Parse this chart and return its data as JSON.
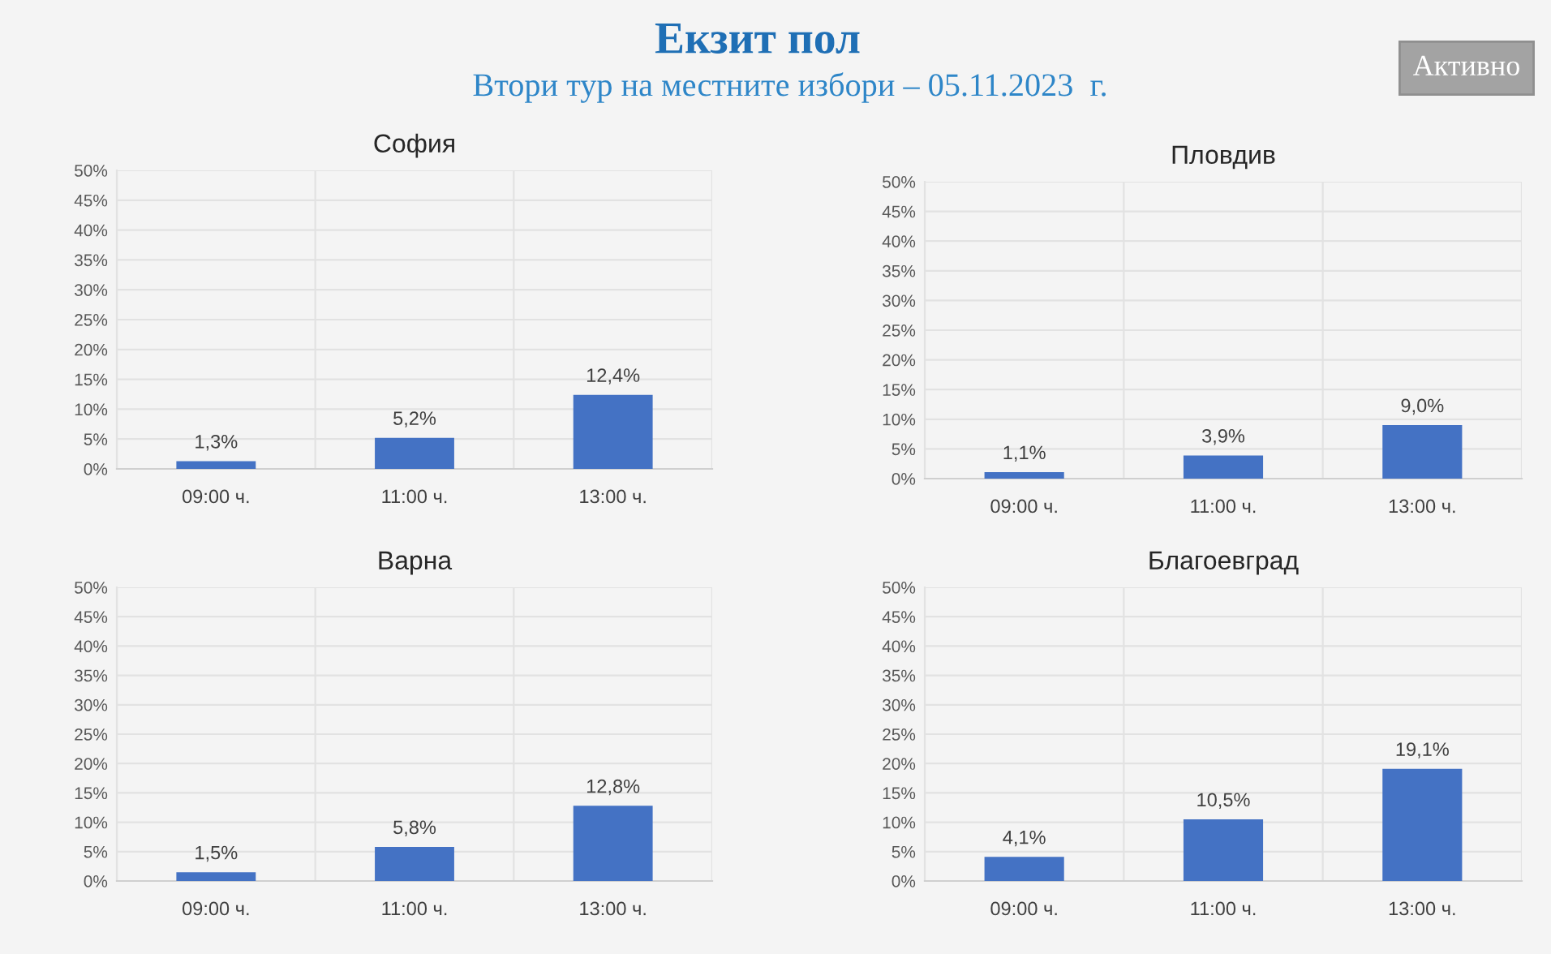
{
  "chart_data": [
    {
      "type": "other",
      "title": "Екзит пол",
      "subtitle": "Втори тур на местните избори – 05.11.2023  г.",
      "annotations": [
        "Активно"
      ]
    },
    {
      "type": "bar",
      "title": "София",
      "categories": [
        "09:00 ч.",
        "11:00 ч.",
        "13:00 ч."
      ],
      "values": [
        1.3,
        5.2,
        12.4
      ],
      "value_labels": [
        "1,3%",
        "5,2%",
        "12,4%"
      ],
      "color": "#4472c4",
      "ylim": [
        0,
        50
      ],
      "yticks": [
        {
          "value": 0,
          "label": "0%"
        },
        {
          "value": 5,
          "label": "5%"
        },
        {
          "value": 10,
          "label": "10%"
        },
        {
          "value": 15,
          "label": "15%"
        },
        {
          "value": 20,
          "label": "20%"
        },
        {
          "value": 25,
          "label": "25%"
        },
        {
          "value": 30,
          "label": "30%"
        },
        {
          "value": 35,
          "label": "35%"
        },
        {
          "value": 40,
          "label": "40%"
        },
        {
          "value": 45,
          "label": "45%"
        },
        {
          "value": 50,
          "label": "50%"
        }
      ],
      "grid": true
    },
    {
      "type": "bar",
      "title": "Пловдив",
      "categories": [
        "09:00 ч.",
        "11:00 ч.",
        "13:00 ч."
      ],
      "values": [
        1.1,
        3.9,
        9.0
      ],
      "value_labels": [
        "1,1%",
        "3,9%",
        "9,0%"
      ],
      "color": "#4472c4",
      "ylim": [
        0,
        50
      ],
      "yticks": [
        {
          "value": 0,
          "label": "0%"
        },
        {
          "value": 5,
          "label": "5%"
        },
        {
          "value": 10,
          "label": "10%"
        },
        {
          "value": 15,
          "label": "15%"
        },
        {
          "value": 20,
          "label": "20%"
        },
        {
          "value": 25,
          "label": "25%"
        },
        {
          "value": 30,
          "label": "30%"
        },
        {
          "value": 35,
          "label": "35%"
        },
        {
          "value": 40,
          "label": "40%"
        },
        {
          "value": 45,
          "label": "45%"
        },
        {
          "value": 50,
          "label": "50%"
        }
      ],
      "grid": true
    },
    {
      "type": "bar",
      "title": "Варна",
      "categories": [
        "09:00 ч.",
        "11:00 ч.",
        "13:00 ч."
      ],
      "values": [
        1.5,
        5.8,
        12.8
      ],
      "value_labels": [
        "1,5%",
        "5,8%",
        "12,8%"
      ],
      "color": "#4472c4",
      "ylim": [
        0,
        50
      ],
      "yticks": [
        {
          "value": 0,
          "label": "0%"
        },
        {
          "value": 5,
          "label": "5%"
        },
        {
          "value": 10,
          "label": "10%"
        },
        {
          "value": 15,
          "label": "15%"
        },
        {
          "value": 20,
          "label": "20%"
        },
        {
          "value": 25,
          "label": "25%"
        },
        {
          "value": 30,
          "label": "30%"
        },
        {
          "value": 35,
          "label": "35%"
        },
        {
          "value": 40,
          "label": "40%"
        },
        {
          "value": 45,
          "label": "45%"
        },
        {
          "value": 50,
          "label": "50%"
        }
      ],
      "grid": true
    },
    {
      "type": "bar",
      "title": "Благоевград",
      "categories": [
        "09:00 ч.",
        "11:00 ч.",
        "13:00 ч."
      ],
      "values": [
        4.1,
        10.5,
        19.1
      ],
      "value_labels": [
        "4,1%",
        "10,5%",
        "19,1%"
      ],
      "color": "#4472c4",
      "ylim": [
        0,
        50
      ],
      "yticks": [
        {
          "value": 0,
          "label": "0%"
        },
        {
          "value": 5,
          "label": "5%"
        },
        {
          "value": 10,
          "label": "10%"
        },
        {
          "value": 15,
          "label": "15%"
        },
        {
          "value": 20,
          "label": "20%"
        },
        {
          "value": 25,
          "label": "25%"
        },
        {
          "value": 30,
          "label": "30%"
        },
        {
          "value": 35,
          "label": "35%"
        },
        {
          "value": 40,
          "label": "40%"
        },
        {
          "value": 45,
          "label": "45%"
        },
        {
          "value": 50,
          "label": "50%"
        }
      ],
      "grid": true
    }
  ]
}
